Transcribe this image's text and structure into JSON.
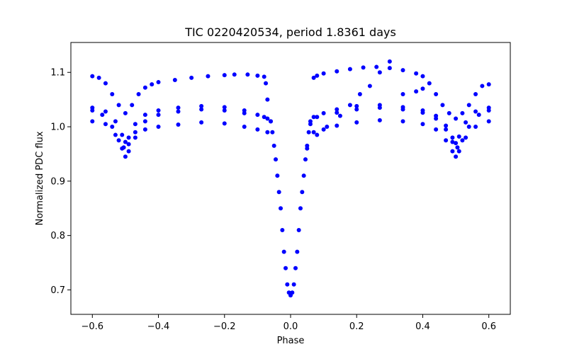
{
  "chart_data": {
    "type": "scatter",
    "title": "TIC 0220420534, period 1.8361 days",
    "xlabel": "Phase",
    "ylabel": "Normalized PDC flux",
    "xlim": [
      -0.665,
      0.665
    ],
    "ylim": [
      0.655,
      1.155
    ],
    "x_ticks": [
      -0.6,
      -0.4,
      -0.2,
      0.0,
      0.2,
      0.4,
      0.6
    ],
    "x_tick_labels": [
      "−0.6",
      "−0.4",
      "−0.2",
      "0.0",
      "0.2",
      "0.4",
      "0.6"
    ],
    "y_ticks": [
      0.7,
      0.8,
      0.9,
      1.0,
      1.1
    ],
    "y_tick_labels": [
      "0.7",
      "0.8",
      "0.9",
      "1.0",
      "1.1"
    ],
    "grid": false,
    "legend": "none",
    "marker_color": "#0000ff",
    "series": [
      {
        "x": [
          -0.6,
          -0.57,
          -0.54,
          -0.52,
          -0.505,
          -0.49,
          -0.47,
          -0.44,
          -0.4,
          -0.34,
          -0.27,
          -0.2,
          -0.14,
          -0.08,
          -0.06,
          -0.055,
          -0.05,
          -0.045,
          -0.04,
          -0.035,
          -0.03,
          -0.025,
          -0.02,
          -0.015,
          -0.01,
          -0.005,
          0.0,
          0.005,
          0.01,
          0.015,
          0.02,
          0.025,
          0.03,
          0.035,
          0.04,
          0.045,
          0.05,
          0.055,
          0.06,
          0.08,
          0.14,
          0.2,
          0.27,
          0.34,
          0.4,
          0.44,
          0.47,
          0.49,
          0.505,
          0.52,
          0.54,
          0.57,
          0.6
        ],
        "y": [
          1.03,
          1.022,
          1.0,
          0.975,
          0.962,
          0.968,
          0.99,
          1.01,
          1.022,
          1.028,
          1.032,
          1.03,
          1.025,
          1.018,
          1.01,
          0.99,
          0.965,
          0.94,
          0.91,
          0.88,
          0.85,
          0.81,
          0.77,
          0.74,
          0.71,
          0.695,
          0.69,
          0.695,
          0.71,
          0.74,
          0.77,
          0.81,
          0.85,
          0.88,
          0.91,
          0.94,
          0.965,
          0.99,
          1.005,
          1.018,
          1.026,
          1.032,
          1.035,
          1.032,
          1.026,
          1.015,
          0.995,
          0.972,
          0.962,
          0.975,
          1.0,
          1.022,
          1.03
        ]
      },
      {
        "x": [
          -0.6,
          -0.56,
          -0.53,
          -0.51,
          -0.5,
          -0.49,
          -0.47,
          -0.44,
          -0.4,
          -0.34,
          -0.27,
          -0.2,
          -0.14,
          -0.1,
          -0.07,
          -0.06,
          0.06,
          0.07,
          0.1,
          0.14,
          0.2,
          0.27,
          0.34,
          0.4,
          0.44,
          0.47,
          0.49,
          0.5,
          0.51,
          0.53,
          0.56,
          0.6
        ],
        "y": [
          1.035,
          1.028,
          1.01,
          0.985,
          0.972,
          0.98,
          1.005,
          1.022,
          1.03,
          1.035,
          1.038,
          1.036,
          1.03,
          1.022,
          1.015,
          1.01,
          1.01,
          1.018,
          1.025,
          1.032,
          1.038,
          1.04,
          1.036,
          1.03,
          1.02,
          1.002,
          0.98,
          0.97,
          0.982,
          1.008,
          1.028,
          1.035
        ]
      },
      {
        "x": [
          -0.6,
          -0.56,
          -0.53,
          -0.51,
          -0.5,
          -0.49,
          -0.47,
          -0.44,
          -0.4,
          -0.34,
          -0.27,
          -0.2,
          -0.14,
          -0.1,
          -0.07,
          0.07,
          0.1,
          0.14,
          0.2,
          0.27,
          0.34,
          0.4,
          0.44,
          0.47,
          0.49,
          0.5,
          0.51,
          0.53,
          0.56,
          0.6
        ],
        "y": [
          1.01,
          1.005,
          0.985,
          0.96,
          0.945,
          0.955,
          0.98,
          0.995,
          1.0,
          1.004,
          1.008,
          1.006,
          1.0,
          0.995,
          0.99,
          0.99,
          0.995,
          1.002,
          1.008,
          1.012,
          1.01,
          1.005,
          0.995,
          0.975,
          0.955,
          0.945,
          0.955,
          0.98,
          1.0,
          1.01
        ]
      },
      {
        "x": [
          -0.6,
          -0.58,
          -0.56,
          -0.54,
          -0.52,
          -0.5,
          -0.48,
          -0.46,
          -0.44,
          -0.42,
          -0.4,
          -0.35,
          -0.3,
          -0.25,
          -0.2,
          -0.17,
          -0.13,
          -0.1,
          -0.08,
          -0.075,
          -0.07,
          0.07,
          0.08,
          0.1,
          0.14,
          0.18,
          0.22,
          0.26,
          0.3,
          0.34,
          0.38,
          0.4,
          0.42,
          0.44,
          0.46,
          0.48,
          0.5,
          0.52,
          0.54,
          0.56,
          0.58,
          0.6
        ],
        "y": [
          1.093,
          1.09,
          1.08,
          1.06,
          1.04,
          1.025,
          1.04,
          1.06,
          1.072,
          1.078,
          1.082,
          1.086,
          1.09,
          1.093,
          1.095,
          1.096,
          1.096,
          1.094,
          1.092,
          1.08,
          1.05,
          1.09,
          1.094,
          1.098,
          1.102,
          1.106,
          1.109,
          1.11,
          1.108,
          1.104,
          1.098,
          1.093,
          1.08,
          1.06,
          1.04,
          1.025,
          1.015,
          1.025,
          1.04,
          1.06,
          1.075,
          1.078
        ]
      },
      {
        "x": [
          0.05,
          0.08,
          0.11,
          0.15,
          0.18,
          0.21,
          0.24,
          0.27,
          0.3,
          0.34,
          0.38,
          0.4
        ],
        "y": [
          0.96,
          0.985,
          1.0,
          1.02,
          1.04,
          1.06,
          1.075,
          1.1,
          1.12,
          1.06,
          1.065,
          1.07
        ]
      }
    ]
  }
}
